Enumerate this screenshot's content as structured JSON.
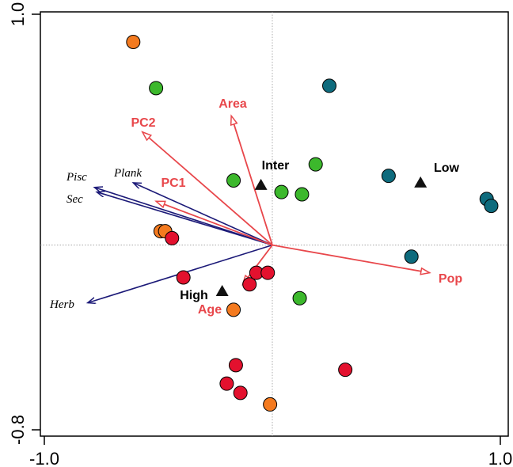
{
  "chart_data": {
    "type": "scatter",
    "subtype": "ordination-biplot",
    "title": "",
    "xlabel": "",
    "ylabel": "",
    "xlim": [
      -1.0,
      1.0
    ],
    "ylim": [
      -0.8,
      1.0
    ],
    "x_ticks": [
      {
        "value": -1.0,
        "label": "-1.0"
      },
      {
        "value": 1.0,
        "label": "1.0"
      }
    ],
    "y_ticks": [
      {
        "value": -0.8,
        "label": "-0.8"
      },
      {
        "value": 1.0,
        "label": "1.0"
      }
    ],
    "reference_lines": {
      "x": 0,
      "y": 0,
      "style": "dotted"
    },
    "colors": {
      "orange": "#f47a1f",
      "green": "#3cb82c",
      "teal": "#0e6b7d",
      "red": "#e3112e",
      "env_arrow": "#e8474b",
      "env_label": "#e8474b",
      "species_arrow": "#1c1a78"
    },
    "series": [
      {
        "color_key": "orange",
        "points": [
          [
            -0.61,
            0.88
          ],
          [
            -0.49,
            0.06
          ],
          [
            -0.47,
            0.06
          ],
          [
            -0.17,
            -0.28
          ],
          [
            -0.01,
            -0.69
          ]
        ]
      },
      {
        "color_key": "green",
        "points": [
          [
            -0.51,
            0.68
          ],
          [
            -0.17,
            0.28
          ],
          [
            0.04,
            0.23
          ],
          [
            0.13,
            0.22
          ],
          [
            0.19,
            0.35
          ],
          [
            0.12,
            -0.23
          ]
        ]
      },
      {
        "color_key": "teal",
        "points": [
          [
            0.25,
            0.69
          ],
          [
            0.51,
            0.3
          ],
          [
            0.61,
            -0.05
          ],
          [
            0.94,
            0.2
          ],
          [
            0.96,
            0.17
          ]
        ]
      },
      {
        "color_key": "red",
        "points": [
          [
            -0.44,
            0.03
          ],
          [
            -0.39,
            -0.14
          ],
          [
            -0.16,
            -0.52
          ],
          [
            -0.2,
            -0.6
          ],
          [
            -0.14,
            -0.64
          ],
          [
            -0.1,
            -0.17
          ],
          [
            -0.07,
            -0.12
          ],
          [
            -0.02,
            -0.12
          ],
          [
            0.32,
            -0.54
          ]
        ]
      }
    ],
    "environmental_vectors": [
      {
        "label": "Area",
        "x": -0.18,
        "y": 0.56
      },
      {
        "label": "PC2",
        "x": -0.57,
        "y": 0.49
      },
      {
        "label": "PC1",
        "x": -0.51,
        "y": 0.19
      },
      {
        "label": "Pop",
        "x": 0.69,
        "y": -0.12
      },
      {
        "label": "Age",
        "x": -0.13,
        "y": -0.17
      }
    ],
    "class_centroids": [
      {
        "label": "Inter",
        "x": -0.05,
        "y": 0.26
      },
      {
        "label": "Low",
        "x": 0.65,
        "y": 0.27
      },
      {
        "label": "High",
        "x": -0.22,
        "y": -0.2
      }
    ],
    "species_vectors": [
      {
        "label": "Pisc",
        "x": -0.78,
        "y": 0.25
      },
      {
        "label": "Sec",
        "x": -0.77,
        "y": 0.23
      },
      {
        "label": "Plank",
        "x": -0.61,
        "y": 0.27
      },
      {
        "label": "Herb",
        "x": -0.81,
        "y": -0.25
      }
    ]
  }
}
